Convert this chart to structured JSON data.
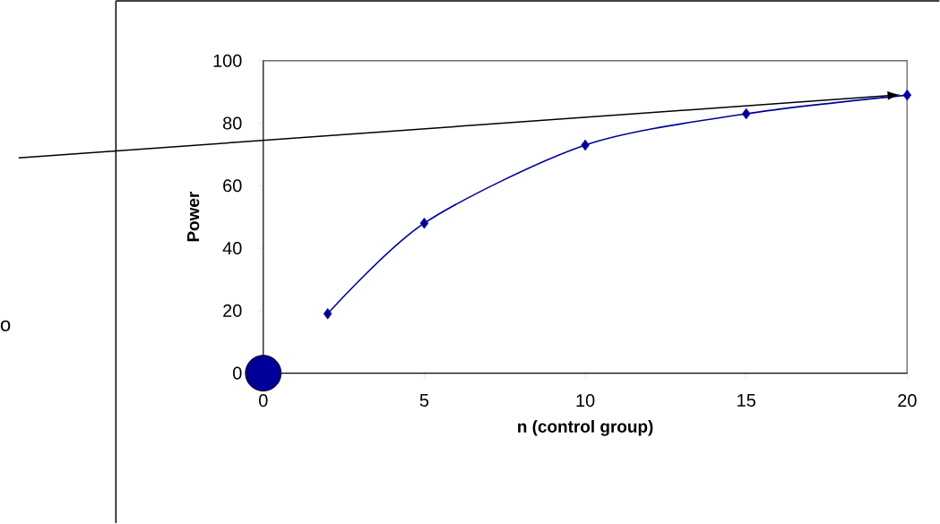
{
  "chart_data": {
    "type": "line",
    "xlabel": "n (control group)",
    "ylabel": "Power",
    "xlim": [
      0,
      20
    ],
    "xticks": [
      0,
      5,
      10,
      15,
      20
    ],
    "ylim": [
      0,
      100
    ],
    "yticks": [
      0,
      20,
      40,
      60,
      80,
      100
    ],
    "grid": false,
    "series": [
      {
        "color": "#000099",
        "marker": "diamond",
        "x": [
          2,
          5,
          10,
          15,
          20
        ],
        "values": [
          19,
          48,
          73,
          83,
          89
        ]
      },
      {
        "type": "scatter",
        "color": "#000099",
        "marker": "circle",
        "x": [
          0
        ],
        "values": [
          0
        ]
      }
    ],
    "annotations": [
      "o"
    ]
  }
}
